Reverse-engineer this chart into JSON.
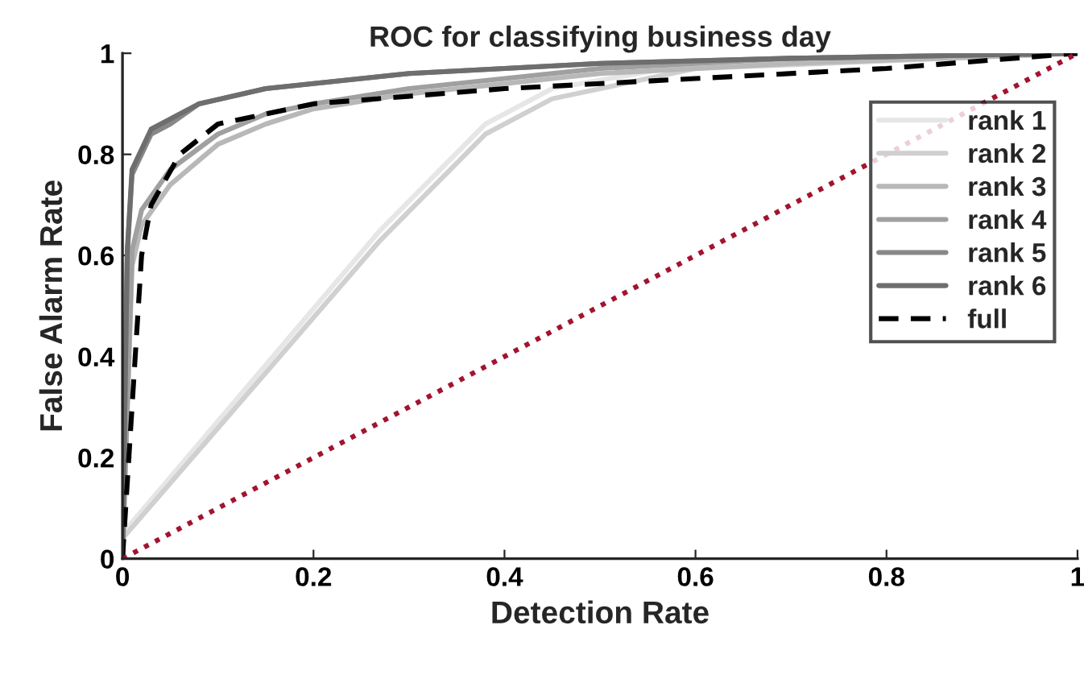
{
  "chart_data": {
    "type": "line",
    "title": "ROC for classifying business day",
    "xlabel": "Detection Rate",
    "ylabel": "False Alarm Rate",
    "xlim": [
      0,
      1
    ],
    "ylim": [
      0,
      1
    ],
    "xticks": [
      0,
      0.2,
      0.4,
      0.6,
      0.8,
      1
    ],
    "yticks": [
      0,
      0.2,
      0.4,
      0.6,
      0.8,
      1
    ],
    "grid": false,
    "legend": "top right",
    "line_style": "solid",
    "series": [
      {
        "name": "rank 1",
        "color": "#e6e6e6",
        "x": [
          0,
          0.27,
          0.38,
          0.45,
          0.6,
          1
        ],
        "values": [
          0.05,
          0.65,
          0.86,
          0.93,
          0.98,
          1
        ]
      },
      {
        "name": "rank 2",
        "color": "#d0d0d0",
        "x": [
          0,
          0.27,
          0.38,
          0.45,
          0.6,
          1
        ],
        "values": [
          0.04,
          0.63,
          0.84,
          0.91,
          0.97,
          1
        ]
      },
      {
        "name": "rank 3",
        "color": "#b8b8b8",
        "x": [
          0,
          0.01,
          0.02,
          0.05,
          0.1,
          0.15,
          0.2,
          0.3,
          0.5,
          0.7,
          1
        ],
        "values": [
          0,
          0.58,
          0.66,
          0.74,
          0.82,
          0.86,
          0.89,
          0.92,
          0.96,
          0.98,
          1
        ]
      },
      {
        "name": "rank 4",
        "color": "#a0a0a0",
        "x": [
          0,
          0.01,
          0.02,
          0.05,
          0.1,
          0.15,
          0.2,
          0.3,
          0.5,
          0.7,
          1
        ],
        "values": [
          0,
          0.61,
          0.69,
          0.77,
          0.84,
          0.88,
          0.9,
          0.93,
          0.97,
          0.99,
          1
        ]
      },
      {
        "name": "rank 5",
        "color": "#888888",
        "x": [
          0,
          0.005,
          0.01,
          0.03,
          0.05,
          0.08,
          0.15,
          0.3,
          0.5,
          0.7,
          1
        ],
        "values": [
          0,
          0.6,
          0.76,
          0.84,
          0.86,
          0.9,
          0.93,
          0.96,
          0.98,
          0.99,
          1
        ]
      },
      {
        "name": "rank 6",
        "color": "#6e6e6e",
        "x": [
          0,
          0.005,
          0.01,
          0.03,
          0.05,
          0.08,
          0.15,
          0.3,
          0.5,
          0.7,
          1
        ],
        "values": [
          0,
          0.61,
          0.77,
          0.85,
          0.87,
          0.9,
          0.93,
          0.96,
          0.98,
          0.99,
          1
        ]
      },
      {
        "name": "full",
        "color": "#000000",
        "line_style": "dashed",
        "x": [
          0,
          0.01,
          0.02,
          0.03,
          0.06,
          0.1,
          0.2,
          0.4,
          0.6,
          0.8,
          1
        ],
        "values": [
          0,
          0.3,
          0.6,
          0.7,
          0.8,
          0.86,
          0.9,
          0.93,
          0.95,
          0.97,
          1
        ]
      },
      {
        "color": "#a2142f",
        "line_style": "dotted",
        "x": [
          0,
          1
        ],
        "values": [
          0,
          1
        ]
      }
    ]
  }
}
